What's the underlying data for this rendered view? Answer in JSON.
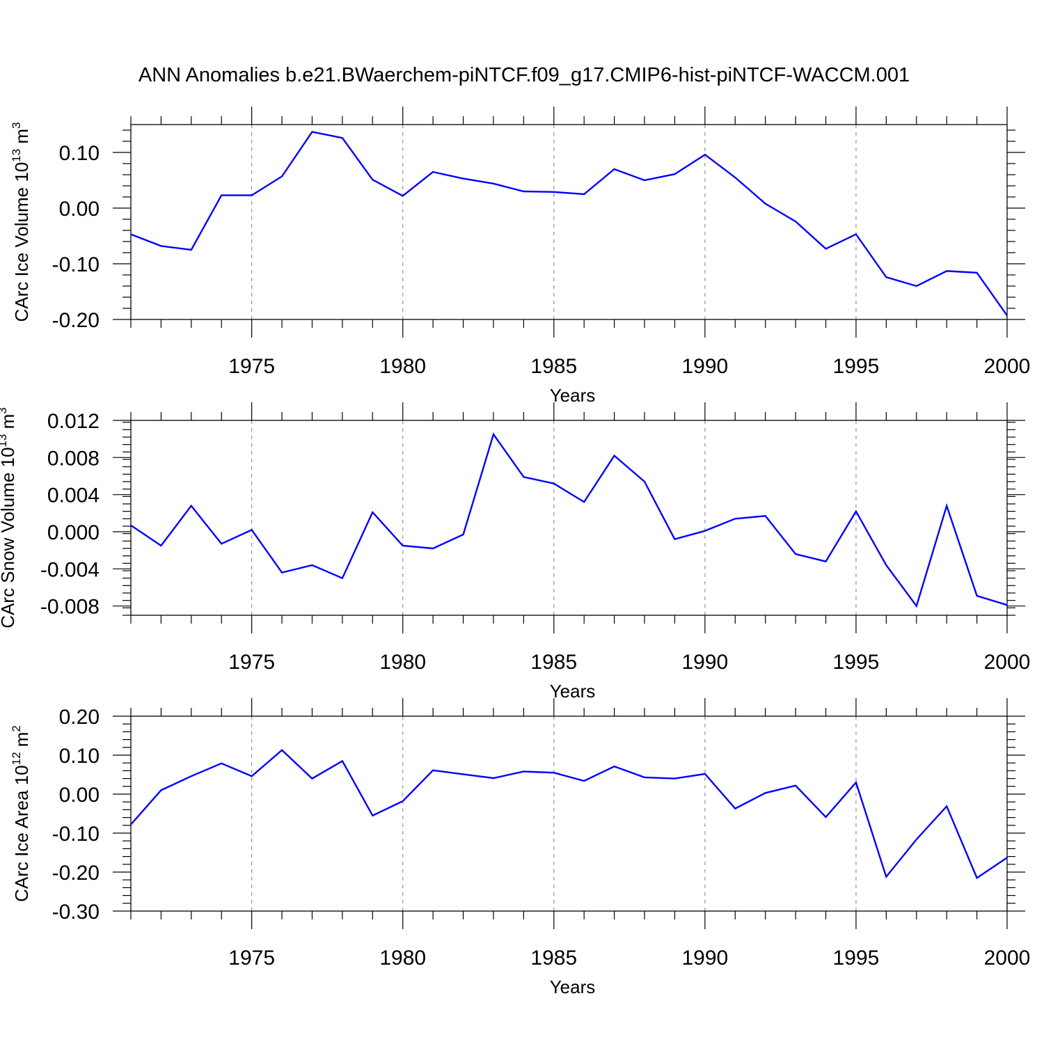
{
  "title": "ANN Anomalies b.e21.BWaerchem-piNTCF.f09_g17.CMIP6-hist-piNTCF-WACCM.001",
  "chart_data": [
    {
      "type": "line",
      "ylabel": "CArc Ice Volume 10",
      "ylabel_sup": "13",
      "ylabel_unit": "m",
      "ylabel_unit_sup": "3",
      "xlabel": "Years",
      "xlim": [
        1971,
        2000
      ],
      "ylim": [
        -0.2,
        0.15
      ],
      "yticks": [
        -0.2,
        -0.1,
        0.0,
        0.1
      ],
      "ytick_labels": [
        "-0.20",
        "-0.10",
        "0.00",
        "0.10"
      ],
      "xticks": [
        1975,
        1980,
        1985,
        1990,
        1995,
        2000
      ],
      "xtick_labels": [
        "1975",
        "1980",
        "1985",
        "1990",
        "1995",
        "2000"
      ],
      "grid": "dashed vertical at major x ticks",
      "color": "#0000ff",
      "x": [
        1971,
        1972,
        1973,
        1974,
        1975,
        1976,
        1977,
        1978,
        1979,
        1980,
        1981,
        1982,
        1983,
        1984,
        1985,
        1986,
        1987,
        1988,
        1989,
        1990,
        1991,
        1992,
        1993,
        1994,
        1995,
        1996,
        1997,
        1998,
        1999,
        2000
      ],
      "values": [
        -0.047,
        -0.068,
        -0.075,
        0.023,
        0.023,
        0.057,
        0.137,
        0.126,
        0.051,
        0.022,
        0.065,
        0.053,
        0.044,
        0.03,
        0.029,
        0.025,
        0.07,
        0.05,
        0.061,
        0.096,
        0.055,
        0.008,
        -0.024,
        -0.073,
        -0.047,
        -0.124,
        -0.14,
        -0.113,
        -0.116,
        -0.193
      ]
    },
    {
      "type": "line",
      "ylabel": "CArc Snow Volume 10",
      "ylabel_sup": "13",
      "ylabel_unit": "m",
      "ylabel_unit_sup": "3",
      "xlabel": "Years",
      "xlim": [
        1971,
        2000
      ],
      "ylim": [
        -0.009,
        0.012
      ],
      "yticks": [
        -0.008,
        -0.004,
        0.0,
        0.004,
        0.008,
        0.012
      ],
      "ytick_labels": [
        "-0.008",
        "-0.004",
        "0.000",
        "0.004",
        "0.008",
        "0.012"
      ],
      "xticks": [
        1975,
        1980,
        1985,
        1990,
        1995,
        2000
      ],
      "xtick_labels": [
        "1975",
        "1980",
        "1985",
        "1990",
        "1995",
        "2000"
      ],
      "grid": "dashed vertical at major x ticks",
      "color": "#0000ff",
      "x": [
        1971,
        1972,
        1973,
        1974,
        1975,
        1976,
        1977,
        1978,
        1979,
        1980,
        1981,
        1982,
        1983,
        1984,
        1985,
        1986,
        1987,
        1988,
        1989,
        1990,
        1991,
        1992,
        1993,
        1994,
        1995,
        1996,
        1997,
        1998,
        1999,
        2000
      ],
      "values": [
        0.0007,
        -0.0015,
        0.0028,
        -0.0013,
        0.0002,
        -0.0044,
        -0.0036,
        -0.005,
        0.0021,
        -0.0015,
        -0.0018,
        -0.0003,
        0.0105,
        0.0059,
        0.0052,
        0.0032,
        0.0082,
        0.0054,
        -0.0008,
        0.0001,
        0.0014,
        0.0017,
        -0.0024,
        -0.0032,
        0.0022,
        -0.0036,
        -0.008,
        0.0028,
        -0.0069,
        -0.0079
      ]
    },
    {
      "type": "line",
      "ylabel": "CArc Ice Area 10",
      "ylabel_sup": "12",
      "ylabel_unit": "m",
      "ylabel_unit_sup": "2",
      "xlabel": "Years",
      "xlim": [
        1971,
        2000
      ],
      "ylim": [
        -0.3,
        0.2
      ],
      "yticks": [
        -0.3,
        -0.2,
        -0.1,
        0.0,
        0.1,
        0.2
      ],
      "ytick_labels": [
        "-0.30",
        "-0.20",
        "-0.10",
        "0.00",
        "0.10",
        "0.20"
      ],
      "xticks": [
        1975,
        1980,
        1985,
        1990,
        1995,
        2000
      ],
      "xtick_labels": [
        "1975",
        "1980",
        "1985",
        "1990",
        "1995",
        "2000"
      ],
      "grid": "dashed vertical at major x ticks",
      "color": "#0000ff",
      "x": [
        1971,
        1972,
        1973,
        1974,
        1975,
        1976,
        1977,
        1978,
        1979,
        1980,
        1981,
        1982,
        1983,
        1984,
        1985,
        1986,
        1987,
        1988,
        1989,
        1990,
        1991,
        1992,
        1993,
        1994,
        1995,
        1996,
        1997,
        1998,
        1999,
        2000
      ],
      "values": [
        -0.078,
        0.01,
        0.046,
        0.079,
        0.046,
        0.113,
        0.04,
        0.085,
        -0.055,
        -0.018,
        0.061,
        0.051,
        0.041,
        0.058,
        0.055,
        0.034,
        0.071,
        0.043,
        0.04,
        0.052,
        -0.037,
        0.003,
        0.022,
        -0.059,
        0.03,
        -0.212,
        -0.116,
        -0.031,
        -0.215,
        -0.163
      ]
    }
  ]
}
